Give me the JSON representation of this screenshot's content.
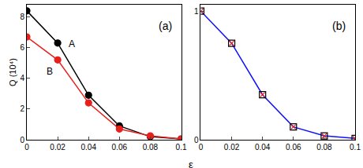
{
  "chart_data": [
    {
      "type": "line",
      "xlabel": "ε",
      "ylabel": "Q (10⁴)",
      "annotations": [
        "(a)"
      ],
      "x": [
        0,
        0.02,
        0.04,
        0.06,
        0.08,
        0.1
      ],
      "series": [
        {
          "name": "A",
          "color": "#000000",
          "marker": "circle",
          "line_style": "solid",
          "values": [
            8.4,
            6.3,
            2.9,
            0.9,
            0.2,
            0.05
          ]
        },
        {
          "name": "B",
          "color": "#e8201c",
          "marker": "circle",
          "line_style": "solid",
          "values": [
            6.7,
            5.2,
            2.4,
            0.7,
            0.25,
            0.05
          ]
        }
      ],
      "xlim": [
        0,
        0.1
      ],
      "xticks": [
        0,
        0.02,
        0.04,
        0.06,
        0.08,
        0.1
      ],
      "ylim": [
        0,
        8.8
      ],
      "yticks": [
        0,
        2,
        4,
        6,
        8
      ],
      "grid": false
    },
    {
      "type": "line",
      "annotations": [
        "(b)"
      ],
      "x": [
        0,
        0.02,
        0.04,
        0.06,
        0.08,
        0.1
      ],
      "series": [
        {
          "color": "#1010ff",
          "marker": "none",
          "line_style": "solid",
          "values": [
            1,
            0.75,
            0.35,
            0.1,
            0.03,
            0.01
          ]
        },
        {
          "color": "#000000",
          "marker": "square-open",
          "line_style": "none",
          "values": [
            1,
            0.75,
            0.35,
            0.1,
            0.03,
            0.01
          ]
        },
        {
          "color": "#e8201c",
          "marker": "x-thin-open",
          "line_style": "none",
          "values": [
            1,
            0.75,
            0.35,
            0.1,
            0.03,
            0.01
          ]
        }
      ],
      "xlim": [
        0,
        0.1
      ],
      "xticks": [
        0,
        0.02,
        0.04,
        0.06,
        0.08,
        0.1
      ],
      "ylim": [
        0,
        1.05
      ],
      "yticks": [
        0,
        1
      ],
      "grid": false
    }
  ]
}
